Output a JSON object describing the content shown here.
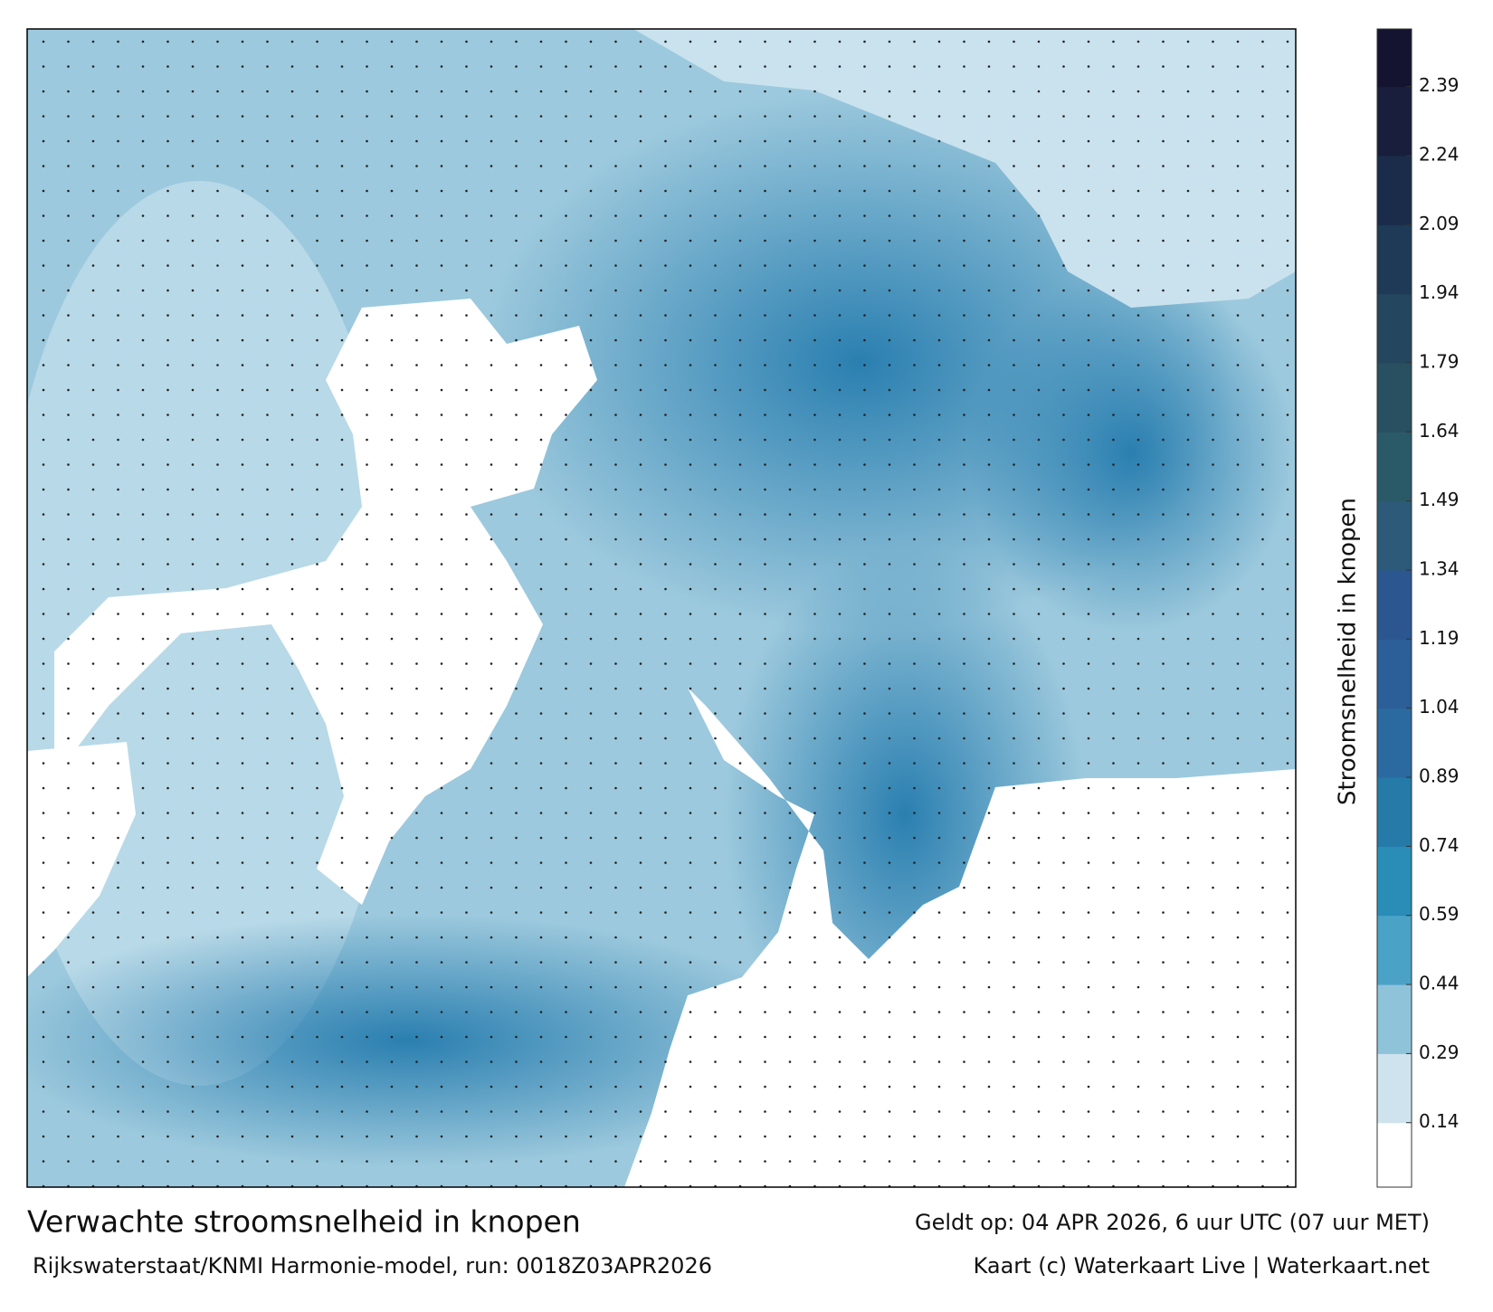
{
  "chart_data": {
    "type": "current-map",
    "title": "Verwachte stroomsnelheid in knopen",
    "subtitle": "Rijkswaterstaat/KNMI Harmonie-model, run: 0018Z03APR2026",
    "valid_time": "Geldt op: 04 APR 2026, 6 uur UTC (07 uur MET)",
    "credit": "Kaart (c) Waterkaart Live | Waterkaart.net",
    "colorbar_label": "Stroomsnelheid in knopen",
    "clim": [
      0,
      2.515
    ],
    "cticks": [
      0.14,
      0.29,
      0.44,
      0.59,
      0.74,
      0.89,
      1.04,
      1.19,
      1.34,
      1.49,
      1.64,
      1.79,
      1.94,
      2.09,
      2.24,
      2.39
    ],
    "colors": [
      "#ffffff",
      "#cfe3ee",
      "#8fc3da",
      "#4aa3c6",
      "#2a8db8",
      "#257aa8",
      "#2b6aa0",
      "#2c5e98",
      "#2c5690",
      "#2c5a78",
      "#2a5a68",
      "#285060",
      "#24465e",
      "#1e3a56",
      "#1a2c4a",
      "#181e3c",
      "#141430"
    ]
  }
}
